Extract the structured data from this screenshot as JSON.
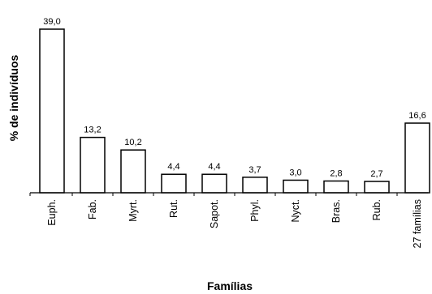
{
  "chart_data": {
    "type": "bar",
    "categories": [
      "Euph.",
      "Fab.",
      "Myrt.",
      "Rut.",
      "Sapot.",
      "Phyl.",
      "Nyct.",
      "Bras.",
      "Rub.",
      "27 famílias"
    ],
    "values": [
      39.0,
      13.2,
      10.2,
      4.4,
      4.4,
      3.7,
      3.0,
      2.8,
      2.7,
      16.6
    ],
    "value_labels": [
      "39,0",
      "13,2",
      "10,2",
      "4,4",
      "4,4",
      "3,7",
      "3,0",
      "2,8",
      "2,7",
      "16,6"
    ],
    "title": "",
    "xlabel": "Famílias",
    "ylabel": "% de indivíduos",
    "ylim": [
      0,
      40
    ],
    "grid": false,
    "legend": "none"
  }
}
